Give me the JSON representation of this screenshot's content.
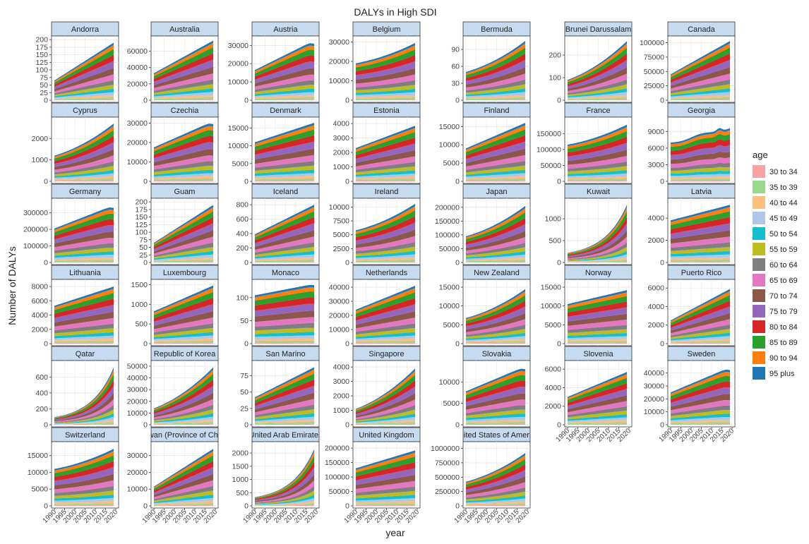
{
  "chart_data": {
    "type": "area",
    "stacked": true,
    "faceted": true,
    "title": "DALYs in High SDI",
    "xlabel": "year",
    "ylabel": "Number of DALYs",
    "x_ticks": [
      1990,
      1995,
      2000,
      2005,
      2010,
      2015,
      2020
    ],
    "years": [
      1990,
      2019
    ],
    "grid": true,
    "legend": {
      "title": "age",
      "position": "right",
      "entries": [
        "30 to 34",
        "35 to 39",
        "40 to 44",
        "45 to 49",
        "50 to 54",
        "55 to 59",
        "60 to 64",
        "65 to 69",
        "70 to 74",
        "75 to 79",
        "80 to 84",
        "85 to 89",
        "90 to 94",
        "95 plus"
      ],
      "colors": [
        "#F8A3A3",
        "#98D98E",
        "#FDBF7F",
        "#AEC7E8",
        "#17BECF",
        "#BCBD22",
        "#7F7F7F",
        "#E377C2",
        "#8C564B",
        "#9467BD",
        "#D62728",
        "#2CA02C",
        "#FF7F0E",
        "#1F77B4"
      ]
    },
    "shares": [
      0.02,
      0.03,
      0.04,
      0.05,
      0.06,
      0.07,
      0.08,
      0.1,
      0.11,
      0.12,
      0.11,
      0.1,
      0.07,
      0.04
    ],
    "panels": [
      {
        "name": "Andorra",
        "ticks": [
          0,
          25,
          50,
          75,
          100,
          125,
          150,
          175,
          200
        ],
        "ymax": 205,
        "start": 65,
        "end": 190,
        "shape": "linear"
      },
      {
        "name": "Australia",
        "ticks": [
          0,
          20000,
          40000,
          60000
        ],
        "ymax": 76000,
        "start": 33000,
        "end": 73000,
        "shape": "linear"
      },
      {
        "name": "Austria",
        "ticks": [
          0,
          10000,
          20000,
          30000
        ],
        "ymax": 34000,
        "start": 16500,
        "end": 31500,
        "shape": "plateau"
      },
      {
        "name": "Belgium",
        "ticks": [
          0,
          10000,
          20000,
          30000
        ],
        "ymax": 32000,
        "start": 19000,
        "end": 29500,
        "shape": "late"
      },
      {
        "name": "Bermuda",
        "ticks": [
          0,
          30,
          60,
          90
        ],
        "ymax": 110,
        "start": 50,
        "end": 105,
        "shape": "late"
      },
      {
        "name": "Brunei Darussalam",
        "ticks": [
          0,
          100,
          200
        ],
        "ymax": 275,
        "start": 90,
        "end": 262,
        "shape": "late"
      },
      {
        "name": "Canada",
        "ticks": [
          0,
          25000,
          50000,
          75000,
          100000
        ],
        "ymax": 108000,
        "start": 45000,
        "end": 103000,
        "shape": "linear"
      },
      {
        "name": "Cyprus",
        "ticks": [
          0,
          1000,
          2000
        ],
        "ymax": 2900,
        "start": 1200,
        "end": 2700,
        "shape": "late"
      },
      {
        "name": "Czechia",
        "ticks": [
          0,
          10000,
          20000,
          30000
        ],
        "ymax": 32000,
        "start": 17500,
        "end": 30000,
        "shape": "plateau"
      },
      {
        "name": "Denmark",
        "ticks": [
          0,
          5000,
          10000,
          15000
        ],
        "ymax": 17500,
        "start": 11000,
        "end": 16500,
        "shape": "linear"
      },
      {
        "name": "Estonia",
        "ticks": [
          0,
          1000,
          2000,
          3000,
          4000
        ],
        "ymax": 4300,
        "start": 2300,
        "end": 3850,
        "shape": "linear"
      },
      {
        "name": "Finland",
        "ticks": [
          0,
          5000,
          10000,
          15000
        ],
        "ymax": 17000,
        "start": 9000,
        "end": 16000,
        "shape": "linear"
      },
      {
        "name": "France",
        "ticks": [
          0,
          50000,
          100000,
          150000
        ],
        "ymax": 195000,
        "start": 115000,
        "end": 178000,
        "shape": "late"
      },
      {
        "name": "Georgia",
        "ticks": [
          0,
          3000,
          6000,
          9000
        ],
        "ymax": 11200,
        "start": 7000,
        "end": 9700,
        "shape": "bump"
      },
      {
        "name": "Germany",
        "ticks": [
          0,
          100000,
          200000,
          300000
        ],
        "ymax": 375000,
        "start": 205000,
        "end": 335000,
        "shape": "plateau"
      },
      {
        "name": "Guam",
        "ticks": [
          0,
          25,
          50,
          75,
          100,
          125,
          150,
          175,
          200
        ],
        "ymax": 205,
        "start": 65,
        "end": 190,
        "shape": "linear"
      },
      {
        "name": "Iceland",
        "ticks": [
          0,
          200,
          400,
          600,
          800
        ],
        "ymax": 860,
        "start": 390,
        "end": 800,
        "shape": "linear"
      },
      {
        "name": "Ireland",
        "ticks": [
          0,
          2500,
          5000,
          7500,
          10000
        ],
        "ymax": 11200,
        "start": 5800,
        "end": 10600,
        "shape": "late"
      },
      {
        "name": "Japan",
        "ticks": [
          0,
          50000,
          100000,
          150000,
          200000
        ],
        "ymax": 225000,
        "start": 95000,
        "end": 205000,
        "shape": "late"
      },
      {
        "name": "Kuwait",
        "ticks": [
          0,
          500,
          1000
        ],
        "ymax": 1420,
        "start": 220,
        "end": 1320,
        "shape": "exp"
      },
      {
        "name": "Latvia",
        "ticks": [
          0,
          2000,
          4000
        ],
        "ymax": 5600,
        "start": 3800,
        "end": 5200,
        "shape": "linear"
      },
      {
        "name": "Lithuania",
        "ticks": [
          0,
          2000,
          4000,
          6000,
          8000
        ],
        "ymax": 8700,
        "start": 5300,
        "end": 8000,
        "shape": "linear"
      },
      {
        "name": "Luxembourg",
        "ticks": [
          0,
          500,
          1000,
          1500
        ],
        "ymax": 1580,
        "start": 820,
        "end": 1480,
        "shape": "linear"
      },
      {
        "name": "Monaco",
        "ticks": [
          0,
          50,
          100
        ],
        "ymax": 135,
        "start": 105,
        "end": 128,
        "shape": "plateau"
      },
      {
        "name": "Netherlands",
        "ticks": [
          0,
          10000,
          20000,
          30000,
          40000
        ],
        "ymax": 44000,
        "start": 24000,
        "end": 41000,
        "shape": "linear"
      },
      {
        "name": "New Zealand",
        "ticks": [
          0,
          5000,
          10000,
          15000
        ],
        "ymax": 16500,
        "start": 6800,
        "end": 14500,
        "shape": "late"
      },
      {
        "name": "Norway",
        "ticks": [
          0,
          5000,
          10000,
          15000
        ],
        "ymax": 16500,
        "start": 10500,
        "end": 14200,
        "shape": "linear"
      },
      {
        "name": "Puerto Rico",
        "ticks": [
          0,
          2000,
          4000,
          6000
        ],
        "ymax": 6700,
        "start": 2500,
        "end": 5900,
        "shape": "linear"
      },
      {
        "name": "Qatar",
        "ticks": [
          0,
          200,
          400,
          600
        ],
        "ymax": 780,
        "start": 95,
        "end": 720,
        "shape": "exp"
      },
      {
        "name": "Republic of Korea",
        "ticks": [
          0,
          10000,
          20000,
          30000,
          40000,
          50000
        ],
        "ymax": 53000,
        "start": 14000,
        "end": 49000,
        "shape": "late"
      },
      {
        "name": "San Marino",
        "ticks": [
          0,
          25,
          50,
          75
        ],
        "ymax": 95,
        "start": 42,
        "end": 88,
        "shape": "linear"
      },
      {
        "name": "Singapore",
        "ticks": [
          0,
          1000,
          2000,
          3000,
          4000
        ],
        "ymax": 4300,
        "start": 1100,
        "end": 3900,
        "shape": "late"
      },
      {
        "name": "Slovakia",
        "ticks": [
          0,
          5000,
          10000
        ],
        "ymax": 14500,
        "start": 7800,
        "end": 13200,
        "shape": "plateau"
      },
      {
        "name": "Slovenia",
        "ticks": [
          0,
          2000,
          4000,
          6000
        ],
        "ymax": 6700,
        "start": 3000,
        "end": 5700,
        "shape": "linear"
      },
      {
        "name": "Sweden",
        "ticks": [
          0,
          10000,
          20000,
          30000,
          40000
        ],
        "ymax": 48000,
        "start": 25000,
        "end": 43000,
        "shape": "plateau"
      },
      {
        "name": "Switzerland",
        "ticks": [
          0,
          5000,
          10000,
          15000
        ],
        "ymax": 18500,
        "start": 11000,
        "end": 17000,
        "shape": "late"
      },
      {
        "name": "Taiwan (Province of China)",
        "ticks": [
          0,
          10000,
          20000,
          30000
        ],
        "ymax": 37000,
        "start": 11500,
        "end": 34000,
        "shape": "linear"
      },
      {
        "name": "United Arab Emirates",
        "ticks": [
          0,
          500,
          1000,
          1500,
          2000
        ],
        "ymax": 2350,
        "start": 330,
        "end": 2150,
        "shape": "exp"
      },
      {
        "name": "United Kingdom",
        "ticks": [
          0,
          50000,
          100000,
          150000,
          200000
        ],
        "ymax": 215000,
        "start": 130000,
        "end": 192000,
        "shape": "linear"
      },
      {
        "name": "United States of America",
        "ticks": [
          0,
          250000,
          500000,
          750000,
          1000000
        ],
        "ymax": 1080000,
        "start": 420000,
        "end": 920000,
        "shape": "late"
      }
    ]
  }
}
